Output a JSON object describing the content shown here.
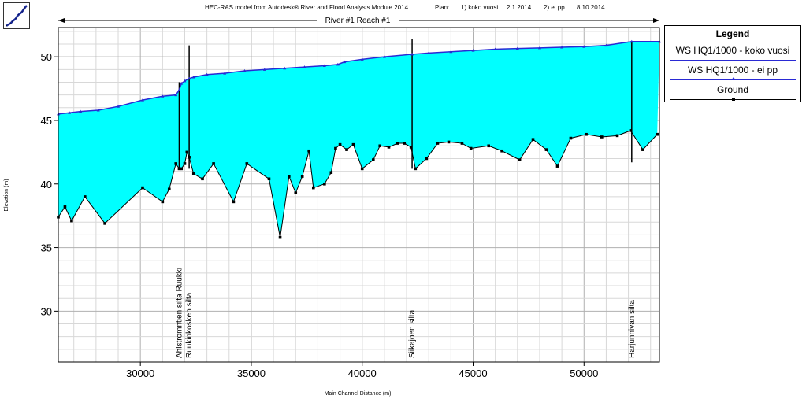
{
  "header": {
    "title": "HEC-RAS model from Autodesk® River and Flood Analysis Module 2014",
    "plan_label": "Plan:",
    "plan1": "1) koko vuosi",
    "plan1_date": "2.1.2014",
    "plan2": "2) ei pp",
    "plan2_date": "8.10.2014"
  },
  "reach_label": "River #1 Reach #1",
  "legend": {
    "title": "Legend",
    "entries": [
      "WS  HQ1/1000 - koko vuosi",
      "WS  HQ1/1000 - ei pp",
      "Ground"
    ]
  },
  "colors": {
    "water_fill": "#00ffff",
    "water_surface": "#2a2ad4",
    "ground": "#000000"
  },
  "chart_data": {
    "type": "area",
    "xlabel": "Main Channel Distance (m)",
    "ylabel": "Elevation (m)",
    "xlim": [
      26300,
      53400
    ],
    "ylim": [
      26,
      52.3
    ],
    "xticks": [
      30000,
      35000,
      40000,
      45000,
      50000
    ],
    "yticks": [
      30,
      35,
      40,
      45,
      50
    ],
    "grid": true,
    "legend_position": "right",
    "bridges": [
      {
        "name": "Ahlstromntien silta Ruukki",
        "x": 31750
      },
      {
        "name": "Ruukinkosken silta",
        "x": 32200
      },
      {
        "name": "Siikajoen silta",
        "x": 42250
      },
      {
        "name": "Harjunnivan silta",
        "x": 52150
      }
    ],
    "series": [
      {
        "name": "WS  HQ1/1000 - koko vuosi",
        "x": [
          26300,
          26800,
          27300,
          28100,
          29000,
          30100,
          31000,
          31600,
          31750,
          31850,
          32000,
          32200,
          32400,
          33000,
          33800,
          34700,
          35600,
          36500,
          37400,
          38300,
          38900,
          39200,
          40000,
          41000,
          42250,
          43000,
          44000,
          45000,
          46000,
          47000,
          48000,
          49000,
          50000,
          51000,
          52150,
          53400
        ],
        "y": [
          45.5,
          45.6,
          45.7,
          45.8,
          46.1,
          46.6,
          46.9,
          47.0,
          47.4,
          47.9,
          48.1,
          48.3,
          48.4,
          48.6,
          48.7,
          48.9,
          49.0,
          49.1,
          49.2,
          49.3,
          49.4,
          49.6,
          49.8,
          50.0,
          50.2,
          50.3,
          50.4,
          50.5,
          50.6,
          50.65,
          50.7,
          50.75,
          50.8,
          50.9,
          51.2,
          51.2
        ]
      },
      {
        "name": "WS  HQ1/1000 - ei pp",
        "x": [
          26300,
          26800,
          27300,
          28100,
          29000,
          30100,
          31000,
          31600,
          31750,
          31850,
          32000,
          32200,
          32400,
          33000,
          33800,
          34700,
          35600,
          36500,
          37400,
          38300,
          38900,
          39200,
          40000,
          41000,
          42250,
          43000,
          44000,
          45000,
          46000,
          47000,
          48000,
          49000,
          50000,
          51000,
          52150,
          53400
        ],
        "y": [
          45.5,
          45.6,
          45.7,
          45.8,
          46.1,
          46.6,
          46.9,
          47.0,
          47.4,
          47.9,
          48.1,
          48.3,
          48.4,
          48.6,
          48.7,
          48.9,
          49.0,
          49.1,
          49.2,
          49.3,
          49.4,
          49.6,
          49.8,
          50.0,
          50.2,
          50.3,
          50.4,
          50.5,
          50.6,
          50.65,
          50.7,
          50.75,
          50.8,
          50.9,
          51.2,
          51.2
        ]
      },
      {
        "name": "Ground",
        "x": [
          26300,
          26600,
          26900,
          27500,
          28400,
          30100,
          31000,
          31300,
          31600,
          31750,
          31850,
          32000,
          32100,
          32200,
          32400,
          32800,
          33300,
          34200,
          34800,
          35800,
          36300,
          36700,
          37000,
          37300,
          37600,
          37800,
          38300,
          38600,
          38800,
          39000,
          39300,
          39600,
          40000,
          40500,
          40800,
          41200,
          41600,
          41900,
          42200,
          42400,
          42900,
          43400,
          43900,
          44500,
          44900,
          45700,
          46300,
          47100,
          47700,
          48300,
          48800,
          49400,
          50100,
          50800,
          51500,
          52100,
          52650,
          53300
        ],
        "y": [
          37.4,
          38.2,
          37.1,
          39.0,
          36.9,
          39.7,
          38.6,
          39.6,
          41.6,
          41.2,
          41.2,
          41.6,
          42.5,
          42.1,
          40.8,
          40.4,
          41.6,
          38.6,
          41.6,
          40.4,
          35.8,
          40.6,
          39.3,
          40.6,
          42.6,
          39.7,
          40.0,
          40.9,
          42.8,
          43.1,
          42.7,
          43.1,
          41.2,
          41.9,
          43.0,
          42.9,
          43.2,
          43.2,
          42.9,
          41.2,
          42.0,
          43.2,
          43.3,
          43.2,
          42.8,
          43.0,
          42.6,
          41.9,
          43.5,
          42.7,
          41.4,
          43.6,
          43.9,
          43.7,
          43.8,
          44.2,
          42.7,
          43.9
        ]
      }
    ]
  }
}
